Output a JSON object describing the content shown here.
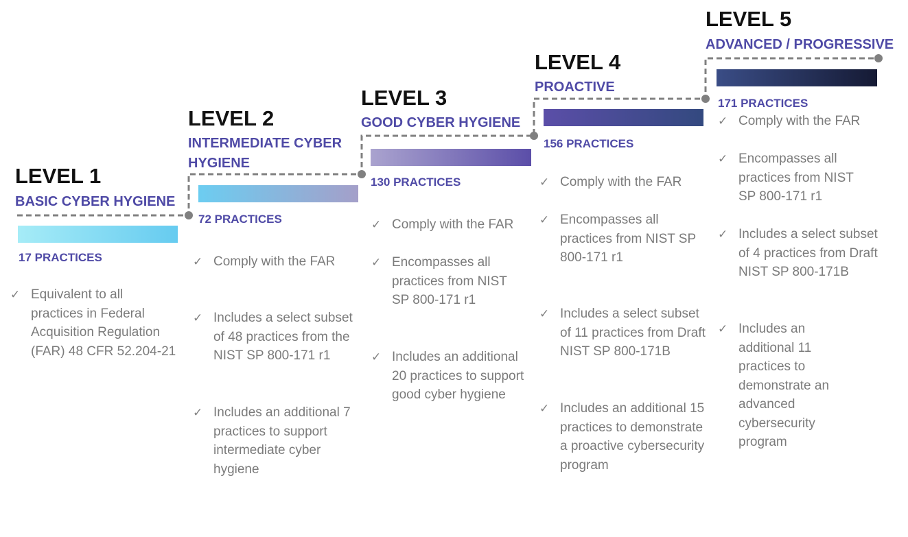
{
  "levels": [
    {
      "title": "LEVEL 1",
      "subtitle": "BASIC CYBER HYGIENE",
      "practices": "17 PRACTICES",
      "bar_colors": [
        "#a6ecf7",
        "#66cbf0"
      ],
      "bullets": [
        "Equivalent to all practices in Federal Acquisition Regulation (FAR) 48 CFR 52.204-21"
      ]
    },
    {
      "title": "LEVEL 2",
      "subtitle": "INTERMEDIATE CYBER HYGIENE",
      "practices": "72 PRACTICES",
      "bar_colors": [
        "#6ccdf1",
        "#a49fc9"
      ],
      "bullets": [
        "Comply with the FAR",
        "Includes a select subset of 48 practices from the NIST SP 800-171 r1",
        "Includes an additional 7 practices to support intermediate cyber hygiene"
      ]
    },
    {
      "title": "LEVEL 3",
      "subtitle": "GOOD CYBER HYGIENE",
      "practices": "130 PRACTICES",
      "bar_colors": [
        "#aaa3cf",
        "#5b4ea8"
      ],
      "bullets": [
        "Comply with the FAR",
        "Encompasses all practices from NIST SP 800-171 r1",
        "Includes an additional 20 practices to support good cyber hygiene"
      ]
    },
    {
      "title": "LEVEL 4",
      "subtitle": "PROACTIVE",
      "practices": "156 PRACTICES",
      "bar_colors": [
        "#5b4ea8",
        "#33497f"
      ],
      "bullets": [
        "Comply with the FAR",
        "Encompasses all practices from NIST SP 800-171 r1",
        "Includes a select subset of 11 practices from Draft NIST SP 800-171B",
        "Includes an additional 15 practices to demonstrate a proactive cybersecurity program"
      ]
    },
    {
      "title": "LEVEL 5",
      "subtitle": "ADVANCED / PROGRESSIVE",
      "practices": "171 PRACTICES",
      "bar_colors": [
        "#3a4d86",
        "#151a34"
      ],
      "bullets": [
        "Comply with the FAR",
        "Encompasses all practices from NIST SP 800-171 r1",
        "Includes a select subset of 4 practices from Draft NIST SP 800-171B",
        "Includes an additional 11 practices to demonstrate an advanced cybersecurity program"
      ]
    }
  ],
  "check_glyph": "✓",
  "colors": {
    "subtitle": "#4f4aa6",
    "connector": "#808080",
    "bullet_text": "#7b7b7b"
  }
}
